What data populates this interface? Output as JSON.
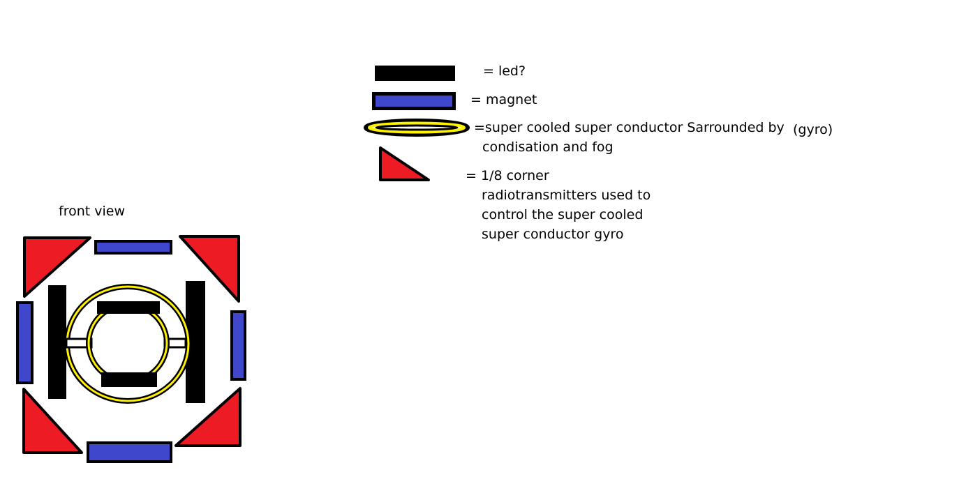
{
  "legend": {
    "led": {
      "label": "= led?",
      "color": "#000000"
    },
    "magnet": {
      "label": "= magnet",
      "color": "#3f48cc"
    },
    "gyro": {
      "label_line1": "=super cooled super conductor Sarrounded by",
      "label_line2": "condisation and fog",
      "note": "(gyro)",
      "color": "#fff200"
    },
    "corner": {
      "label_line1": "=  1/8 corner",
      "label_line2": "radiotransmitters used to",
      "label_line3": "control the super cooled",
      "label_line4": "super conductor gyro",
      "color": "#ed1c24"
    }
  },
  "diagram": {
    "caption": "front view"
  }
}
